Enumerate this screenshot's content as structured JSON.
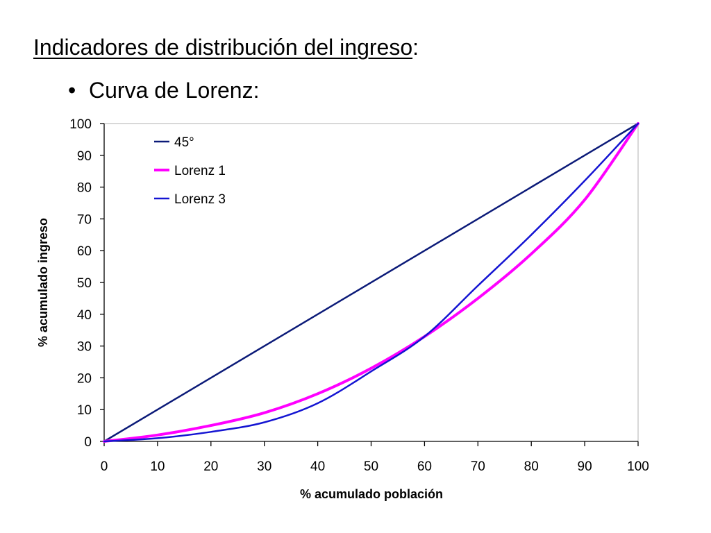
{
  "slide": {
    "title_main": "Indicadores de distribución del ingreso",
    "title_suffix": ":",
    "bullet_symbol": "•",
    "bullet_text": "Curva de Lorenz:"
  },
  "chart_data": {
    "type": "line",
    "title": "",
    "xlabel": "% acumulado población",
    "ylabel": "% acumulado ingreso",
    "xlim": [
      0,
      100
    ],
    "ylim": [
      0,
      100
    ],
    "xticks": [
      0,
      10,
      20,
      30,
      40,
      50,
      60,
      70,
      80,
      90,
      100
    ],
    "yticks": [
      0,
      10,
      20,
      30,
      40,
      50,
      60,
      70,
      80,
      90,
      100
    ],
    "grid": false,
    "legend_position": "top-left",
    "series": [
      {
        "name": "45°",
        "color": "#0b1a78",
        "x": [
          0,
          100
        ],
        "y": [
          0,
          100
        ]
      },
      {
        "name": "Lorenz 1",
        "color": "#ff00ff",
        "x": [
          0,
          10,
          20,
          30,
          40,
          50,
          60,
          70,
          80,
          90,
          100
        ],
        "y": [
          0,
          2,
          5,
          9,
          15,
          23,
          33,
          45,
          59,
          76,
          100
        ]
      },
      {
        "name": "Lorenz 3",
        "color": "#1414d2",
        "x": [
          0,
          10,
          20,
          30,
          40,
          50,
          60,
          70,
          80,
          90,
          100
        ],
        "y": [
          0,
          1,
          3,
          6,
          12,
          22,
          33,
          49,
          65,
          82,
          100
        ]
      }
    ]
  }
}
